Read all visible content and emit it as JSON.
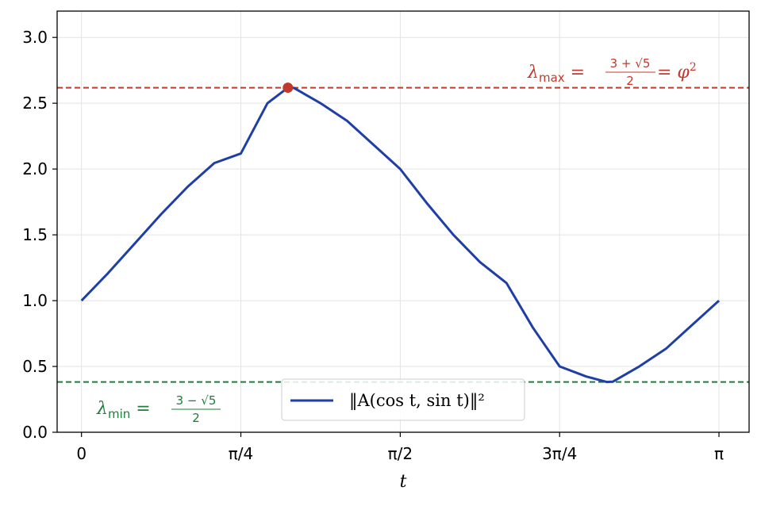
{
  "chart_data": {
    "type": "line",
    "title": "",
    "xlabel": "t",
    "ylabel": "",
    "xlim": [
      -0.12,
      3.29
    ],
    "ylim": [
      0.0,
      3.2
    ],
    "x_ticks": [
      {
        "value": 0,
        "label": "0"
      },
      {
        "value": 0.7853981634,
        "label": "π/4"
      },
      {
        "value": 1.5707963268,
        "label": "π/2"
      },
      {
        "value": 2.3561944902,
        "label": "3π/4"
      },
      {
        "value": 3.1415926536,
        "label": "π"
      }
    ],
    "y_ticks": [
      {
        "value": 0.0,
        "label": "0.0"
      },
      {
        "value": 0.5,
        "label": "0.5"
      },
      {
        "value": 1.0,
        "label": "1.0"
      },
      {
        "value": 1.5,
        "label": "1.5"
      },
      {
        "value": 2.0,
        "label": "2.0"
      },
      {
        "value": 2.5,
        "label": "2.5"
      },
      {
        "value": 3.0,
        "label": "3.0"
      }
    ],
    "grid": true,
    "legend_position": "bottom-center",
    "series": [
      {
        "name": "‖A(cos t, sin t)‖²",
        "color": "#1f3fa6",
        "x": [
          0.0,
          0.1309,
          0.2618,
          0.3927,
          0.5236,
          0.6545,
          0.7854,
          0.9163,
          1.0172,
          1.0472,
          1.1781,
          1.309,
          1.4399,
          1.5708,
          1.7017,
          1.8326,
          1.9635,
          2.0944,
          2.2253,
          2.3562,
          2.4871,
          2.5881,
          2.618,
          2.7489,
          2.8798,
          3.0107,
          3.1416
        ],
        "y": [
          1.0,
          1.2088,
          1.433,
          1.6571,
          1.866,
          2.0453,
          2.118,
          2.5,
          2.618,
          2.616,
          2.5,
          2.366,
          2.183,
          2.0,
          1.741,
          1.5,
          1.2929,
          1.134,
          0.7929,
          0.5,
          0.4236,
          0.382,
          0.384,
          0.5,
          0.634,
          0.8171,
          1.0
        ]
      }
    ],
    "reference_lines": [
      {
        "y": 2.618,
        "color": "#c0392b",
        "label": "λmax = (3+√5)/2 = φ²"
      },
      {
        "y": 0.382,
        "color": "#1e7d3a",
        "label": "λmin = (3−√5)/2"
      }
    ],
    "highlight_point": {
      "x": 1.0172,
      "y": 2.618,
      "color": "#c0392b"
    }
  },
  "annotations": {
    "max": {
      "lambda": "λ",
      "sub": "max",
      "eq1": " = ",
      "num": "3 + √5",
      "den": "2",
      "eq2": " = φ",
      "sup": "2"
    },
    "min": {
      "lambda": "λ",
      "sub": "min",
      "eq1": " = ",
      "num": "3 − √5",
      "den": "2"
    }
  },
  "legend": {
    "label": "‖A(cos t, sin t)‖²"
  }
}
